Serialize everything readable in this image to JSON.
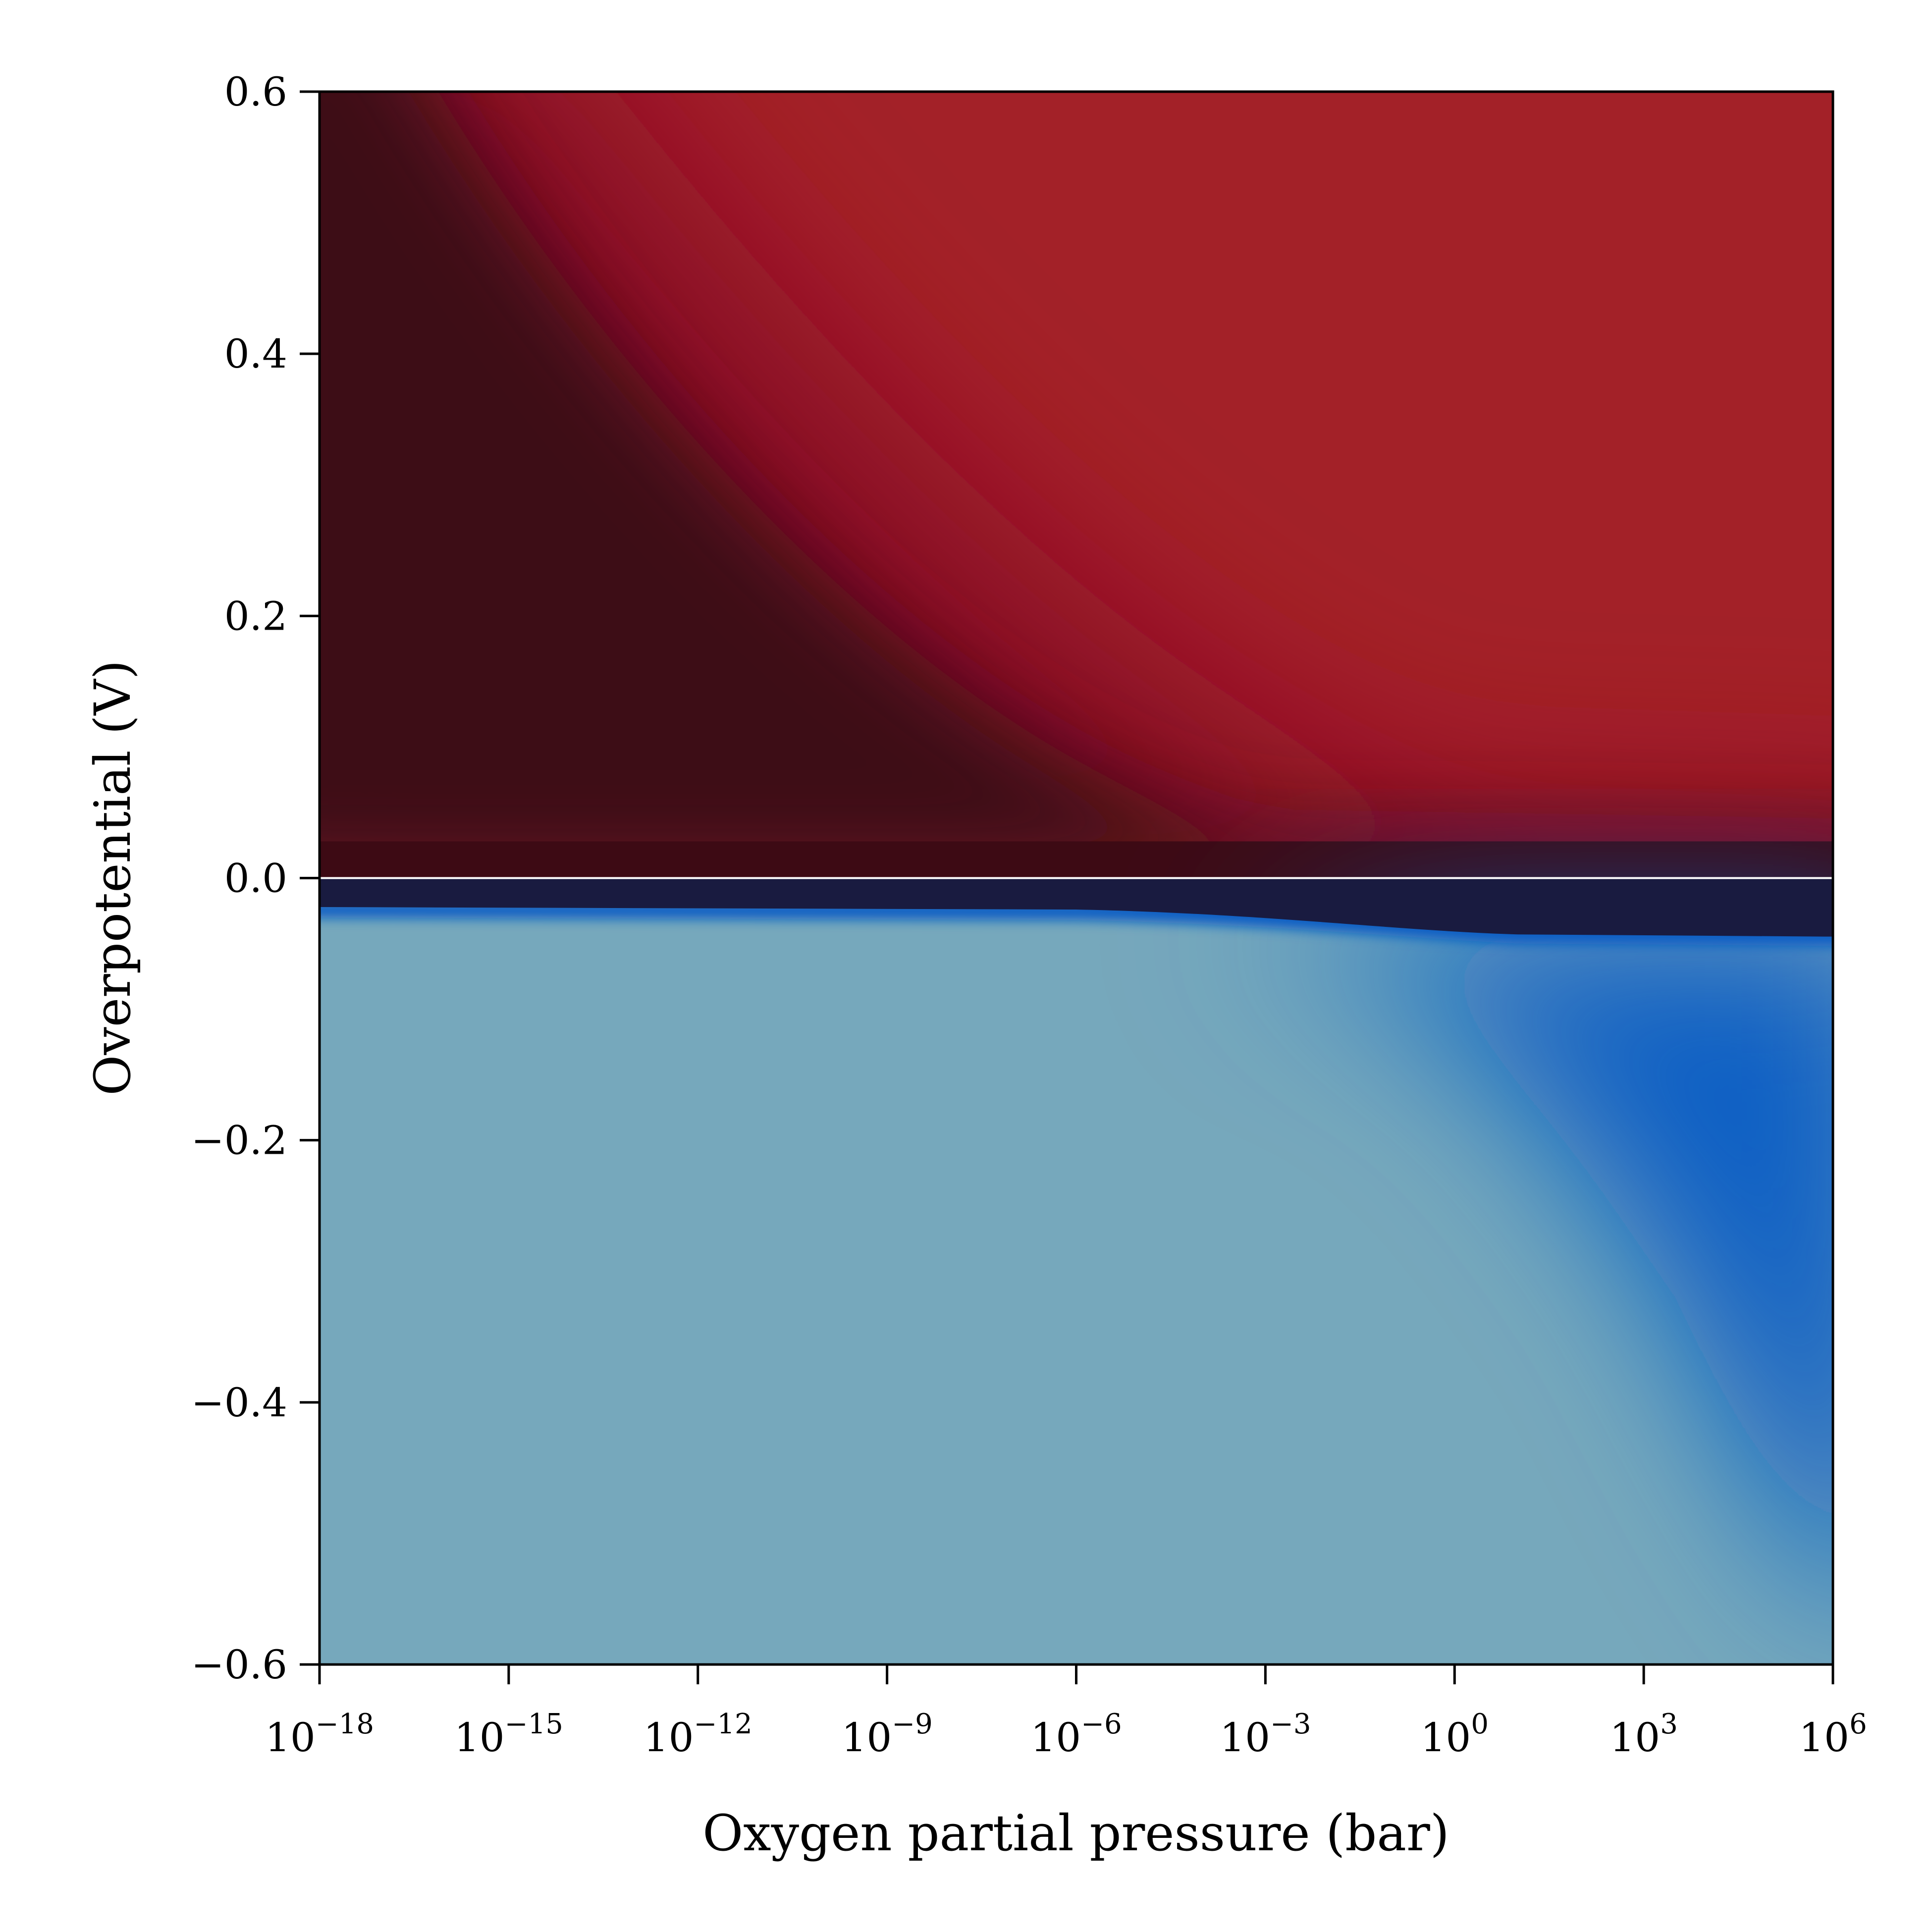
{
  "chart_data": {
    "type": "heatmap",
    "title": "",
    "xlabel": "Oxygen partial pressure (bar)",
    "ylabel": "Overpotential (V)",
    "x_scale": "log",
    "xlim_exponent": [
      -18,
      6
    ],
    "ylim": [
      -0.6,
      0.6
    ],
    "x_ticks": [
      {
        "base": "10",
        "exp": "−18",
        "value_exp": -18
      },
      {
        "base": "10",
        "exp": "−15",
        "value_exp": -15
      },
      {
        "base": "10",
        "exp": "−12",
        "value_exp": -12
      },
      {
        "base": "10",
        "exp": "−9",
        "value_exp": -9
      },
      {
        "base": "10",
        "exp": "−6",
        "value_exp": -6
      },
      {
        "base": "10",
        "exp": "−3",
        "value_exp": -3
      },
      {
        "base": "10",
        "exp": "0",
        "value_exp": 0
      },
      {
        "base": "10",
        "exp": "3",
        "value_exp": 3
      },
      {
        "base": "10",
        "exp": "6",
        "value_exp": 6
      }
    ],
    "y_ticks": [
      {
        "label": "0.6",
        "value": 0.6
      },
      {
        "label": "0.4",
        "value": 0.4
      },
      {
        "label": "0.2",
        "value": 0.2
      },
      {
        "label": "0.0",
        "value": 0.0
      },
      {
        "label": "−0.2",
        "value": -0.2
      },
      {
        "label": "−0.4",
        "value": -0.4
      },
      {
        "label": "−0.6",
        "value": -0.6
      }
    ],
    "zero_line": {
      "y": 0.0,
      "color": "#ffffff"
    },
    "colors": {
      "anodic_bright": "#a32128",
      "anodic_mid": "#8c0f28",
      "anodic_dark": "#3d0a14",
      "cathodic_dark": "#191b40",
      "cathodic_bright": "#0a5fc4",
      "cathodic_pale": "#76a8bc"
    }
  }
}
